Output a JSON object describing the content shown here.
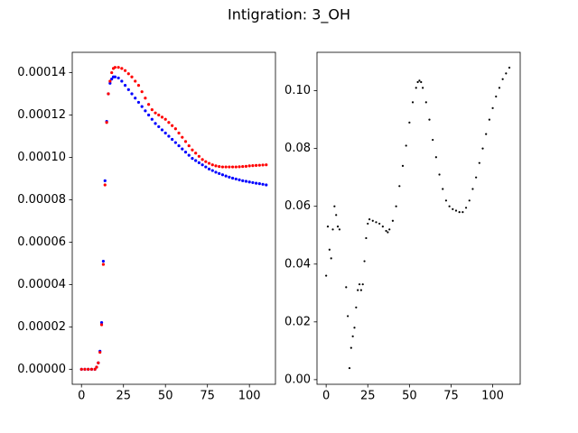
{
  "title": "Intigration: 3_OH",
  "chart_data": [
    {
      "type": "scatter",
      "x": [
        0,
        2,
        4,
        6,
        8,
        9,
        10,
        11,
        12,
        13,
        14,
        15,
        16,
        17,
        18,
        19,
        20,
        22,
        24,
        26,
        28,
        30,
        32,
        34,
        36,
        38,
        40,
        42,
        44,
        46,
        48,
        50,
        52,
        54,
        56,
        58,
        60,
        62,
        64,
        66,
        68,
        70,
        72,
        74,
        76,
        78,
        80,
        82,
        84,
        86,
        88,
        90,
        92,
        94,
        96,
        98,
        100,
        102,
        104,
        106,
        108,
        110
      ],
      "series": [
        {
          "color": "#0000ff",
          "values": [
            0,
            0,
            0,
            0,
            0,
            1e-06,
            3e-06,
            8.5e-06,
            2.2e-05,
            5.1e-05,
            8.9e-05,
            0.000117,
            0.00013,
            0.000135,
            0.000137,
            0.000138,
            0.000138,
            0.0001375,
            0.000136,
            0.000134,
            0.000132,
            0.00013,
            0.000128,
            0.000126,
            0.000124,
            0.000122,
            0.00012,
            0.000118,
            0.000116,
            0.0001145,
            0.000113,
            0.0001115,
            0.00011,
            0.0001085,
            0.000107,
            0.0001055,
            0.000104,
            0.0001025,
            0.000101,
            9.95e-05,
            9.85e-05,
            9.75e-05,
            9.65e-05,
            9.55e-05,
            9.45e-05,
            9.38e-05,
            9.3e-05,
            9.24e-05,
            9.18e-05,
            9.12e-05,
            9.07e-05,
            9.02e-05,
            8.98e-05,
            8.94e-05,
            8.9e-05,
            8.87e-05,
            8.84e-05,
            8.81e-05,
            8.78e-05,
            8.76e-05,
            8.73e-05,
            8.7e-05
          ]
        },
        {
          "color": "#ff0000",
          "values": [
            0,
            0,
            0,
            0,
            0,
            1e-06,
            3e-06,
            8e-06,
            2.1e-05,
            4.95e-05,
            8.7e-05,
            0.0001165,
            0.00013,
            0.000136,
            0.00014,
            0.000142,
            0.0001425,
            0.0001425,
            0.000142,
            0.000141,
            0.0001395,
            0.000138,
            0.000136,
            0.000134,
            0.000131,
            0.000128,
            0.000125,
            0.0001225,
            0.000121,
            0.00012,
            0.000119,
            0.000118,
            0.0001165,
            0.000115,
            0.0001135,
            0.0001115,
            0.0001095,
            0.0001075,
            0.0001055,
            0.0001035,
            0.000102,
            0.0001005,
            9.9e-05,
            9.8e-05,
            9.72e-05,
            9.65e-05,
            9.6e-05,
            9.57e-05,
            9.55e-05,
            9.55e-05,
            9.55e-05,
            9.55e-05,
            9.55e-05,
            9.56e-05,
            9.57e-05,
            9.58e-05,
            9.6e-05,
            9.61e-05,
            9.62e-05,
            9.63e-05,
            9.64e-05,
            9.65e-05
          ]
        }
      ],
      "xlim": [
        -5.5,
        115.5
      ],
      "xticks": [
        0,
        25,
        50,
        75,
        100
      ],
      "ylim": [
        -7.1e-06,
        0.0001496
      ],
      "yticks": [
        {
          "value": 0,
          "label": "0.00000"
        },
        {
          "value": 2e-05,
          "label": "0.00002"
        },
        {
          "value": 4e-05,
          "label": "0.00004"
        },
        {
          "value": 6e-05,
          "label": "0.00006"
        },
        {
          "value": 8e-05,
          "label": "0.00008"
        },
        {
          "value": 0.0001,
          "label": "0.00010"
        },
        {
          "value": 0.00012,
          "label": "0.00012"
        },
        {
          "value": 0.00014,
          "label": "0.00014"
        }
      ]
    },
    {
      "type": "scatter",
      "x": [
        0,
        1,
        2,
        3,
        4,
        5,
        6,
        7,
        8,
        12,
        13,
        14,
        15,
        16,
        17,
        18,
        19,
        20,
        21,
        22,
        23,
        24,
        25,
        26,
        28,
        30,
        32,
        34,
        36,
        37,
        38,
        40,
        42,
        44,
        46,
        48,
        50,
        52,
        54,
        55,
        56,
        57,
        58,
        60,
        62,
        64,
        66,
        68,
        70,
        72,
        74,
        76,
        78,
        80,
        82,
        84,
        86,
        88,
        90,
        92,
        94,
        96,
        98,
        100,
        102,
        104,
        106,
        108,
        110
      ],
      "series": [
        {
          "color": "#000000",
          "values": [
            0.036,
            0.053,
            0.045,
            0.042,
            0.052,
            0.06,
            0.057,
            0.053,
            0.052,
            0.032,
            0.022,
            0.004,
            0.011,
            0.015,
            0.018,
            0.025,
            0.031,
            0.033,
            0.031,
            0.033,
            0.041,
            0.049,
            0.054,
            0.0555,
            0.055,
            0.0545,
            0.054,
            0.053,
            0.0515,
            0.051,
            0.052,
            0.055,
            0.06,
            0.067,
            0.074,
            0.081,
            0.089,
            0.096,
            0.101,
            0.103,
            0.1035,
            0.103,
            0.101,
            0.096,
            0.09,
            0.083,
            0.077,
            0.071,
            0.066,
            0.062,
            0.06,
            0.059,
            0.0585,
            0.058,
            0.058,
            0.0595,
            0.062,
            0.066,
            0.07,
            0.075,
            0.08,
            0.085,
            0.09,
            0.094,
            0.098,
            0.101,
            0.104,
            0.106,
            0.108
          ]
        }
      ],
      "xlim": [
        -5.5,
        116.5
      ],
      "xticks": [
        0,
        25,
        50,
        75,
        100
      ],
      "ylim": [
        -0.0016,
        0.1133
      ],
      "yticks": [
        {
          "value": 0,
          "label": "0.00"
        },
        {
          "value": 0.02,
          "label": "0.02"
        },
        {
          "value": 0.04,
          "label": "0.04"
        },
        {
          "value": 0.06,
          "label": "0.06"
        },
        {
          "value": 0.08,
          "label": "0.08"
        },
        {
          "value": 0.1,
          "label": "0.10"
        }
      ]
    }
  ]
}
